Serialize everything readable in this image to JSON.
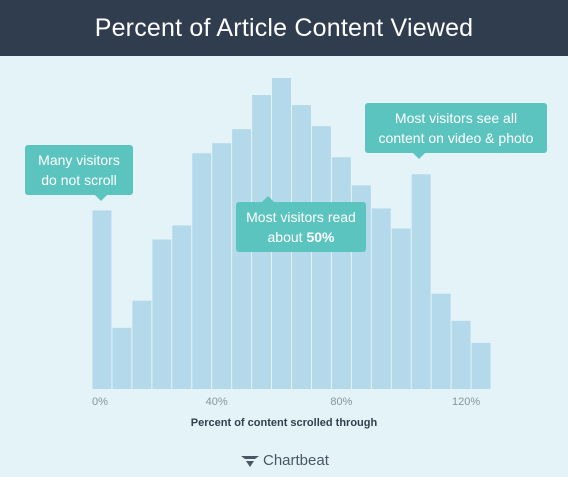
{
  "header": {
    "title": "Percent of Article Content Viewed"
  },
  "chart_data": {
    "type": "bar",
    "title": "Percent of Article Content Viewed",
    "xlabel": "Percent of content scrolled through",
    "ylabel": "",
    "x_ticks": [
      "0%",
      "40%",
      "80%",
      "120%"
    ],
    "x_tick_values": [
      0,
      40,
      80,
      120
    ],
    "bin_width": 6.4,
    "bin_start": 0,
    "bar_color": "#b3d9ea",
    "grid": false,
    "values": [
      178,
      61,
      88,
      149,
      163,
      235,
      245,
      259,
      293,
      310,
      283,
      262,
      231,
      203,
      180,
      160,
      214,
      95,
      68,
      46
    ],
    "ylim": [
      0,
      310
    ],
    "annotations": [
      {
        "text": "Many visitors do not scroll"
      },
      {
        "text": "Most visitors read about 50%"
      },
      {
        "text": "Most visitors see all content on video & photo"
      }
    ]
  },
  "callouts": {
    "no_scroll_line1": "Many visitors",
    "no_scroll_line2": "do not scroll",
    "read_line1": "Most visitors read",
    "read_line2_prefix": "about ",
    "read_line2_bold": "50%",
    "video_line1": "Most visitors see all",
    "video_line2": "content on video & photo"
  },
  "brand": {
    "name": "Chartbeat",
    "icon": "chartbeat-logo-icon",
    "color": "#4a5663"
  }
}
